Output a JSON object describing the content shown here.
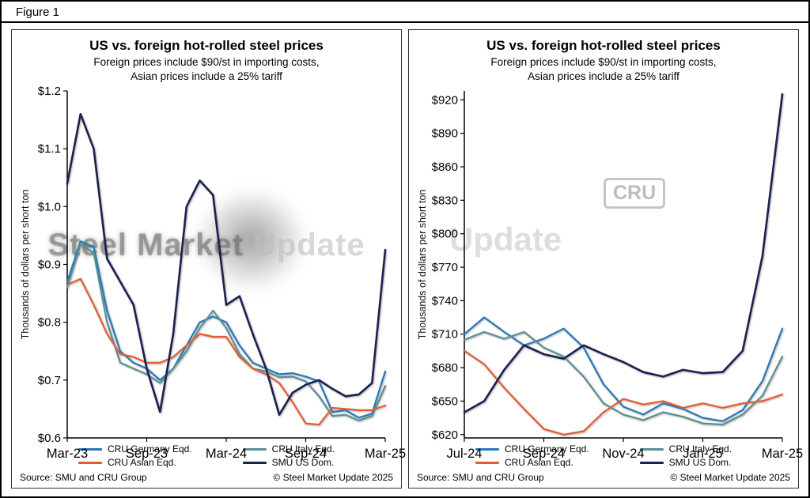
{
  "figure_label": "Figure 1",
  "watermark": {
    "left_dark": "Steel Market",
    "left_light": "Update",
    "badge": "CRU",
    "right_text": "Update"
  },
  "chart_data": [
    {
      "type": "line",
      "title": "US vs. foreign hot-rolled steel prices",
      "subtitle_line1": "Foreign prices include $90/st in importing costs,",
      "subtitle_line2": "Asian prices include a 25% tariff",
      "ylabel": "Thousands of dollars per short ton",
      "source": "Source: SMU and CRU Group",
      "copyright": "© Steel Market Update 2025",
      "grid": false,
      "legend_position": "bottom",
      "ylim": [
        0.6,
        1.2
      ],
      "y_ticks": [
        0.6,
        0.7,
        0.8,
        0.9,
        1.0,
        1.1,
        1.2
      ],
      "y_tick_labels": [
        "$0.6",
        "$0.7",
        "$0.8",
        "$0.9",
        "$1.0",
        "$1.1",
        "$1.2"
      ],
      "x_tick_labels": [
        "Mar-23",
        "Sep-23",
        "Mar-24",
        "Sep-24",
        "Mar-25"
      ],
      "x_tick_indices": [
        0,
        6,
        12,
        18,
        24
      ],
      "x_unit": "monthly from Mar-23 to Mar-25",
      "series": [
        {
          "name": "CRU Germany Eqd.",
          "color": "#2878b8",
          "width": 2.2,
          "values": [
            0.87,
            0.94,
            0.93,
            0.82,
            0.75,
            0.73,
            0.72,
            0.7,
            0.72,
            0.76,
            0.8,
            0.81,
            0.8,
            0.76,
            0.73,
            0.72,
            0.71,
            0.712,
            0.706,
            0.698,
            0.645,
            0.648,
            0.635,
            0.642,
            0.715
          ]
        },
        {
          "name": "CRU Italy Eqd.",
          "color": "#5b8f92",
          "width": 2.2,
          "values": [
            0.86,
            0.935,
            0.92,
            0.8,
            0.73,
            0.72,
            0.71,
            0.695,
            0.72,
            0.75,
            0.79,
            0.82,
            0.79,
            0.745,
            0.72,
            0.715,
            0.705,
            0.706,
            0.698,
            0.672,
            0.638,
            0.64,
            0.63,
            0.638,
            0.69
          ]
        },
        {
          "name": "CRU Asian Eqd.",
          "color": "#e65c30",
          "width": 2.2,
          "values": [
            0.865,
            0.875,
            0.83,
            0.78,
            0.745,
            0.74,
            0.73,
            0.73,
            0.74,
            0.76,
            0.78,
            0.775,
            0.775,
            0.74,
            0.72,
            0.71,
            0.695,
            0.662,
            0.625,
            0.623,
            0.652,
            0.65,
            0.648,
            0.648,
            0.656
          ]
        },
        {
          "name": "SMU US Dom.",
          "color": "#1b2150",
          "width": 2.6,
          "values": [
            1.04,
            1.16,
            1.1,
            0.91,
            0.87,
            0.83,
            0.72,
            0.645,
            0.78,
            1.0,
            1.045,
            1.02,
            0.83,
            0.845,
            0.78,
            0.72,
            0.64,
            0.678,
            0.692,
            0.7,
            0.685,
            0.672,
            0.675,
            0.695,
            0.925
          ]
        }
      ]
    },
    {
      "type": "line",
      "title": "US vs. foreign hot-rolled steel prices",
      "subtitle_line1": "Foreign prices include $90/st in importing costs,",
      "subtitle_line2": "Asian prices include a 25% tariff",
      "ylabel": "Thousands of dollars per short ton",
      "source": "Source: SMU and CRU Group",
      "copyright": "© Steel Market Update 2025",
      "grid": false,
      "legend_position": "bottom",
      "ylim": [
        617,
        928
      ],
      "y_ticks": [
        620,
        650,
        680,
        710,
        740,
        770,
        800,
        830,
        860,
        890,
        920
      ],
      "y_tick_labels": [
        "$620",
        "$650",
        "$680",
        "$710",
        "$740",
        "$770",
        "$800",
        "$830",
        "$860",
        "$890",
        "$920"
      ],
      "x_tick_labels": [
        "Jul-24",
        "Sep-24",
        "Nov-24",
        "Jan-25",
        "Mar-25"
      ],
      "x_tick_indices": [
        0,
        4,
        8,
        12,
        16
      ],
      "x_unit": "semi-monthly from Jul-24 to Mar-25",
      "series": [
        {
          "name": "CRU Germany Eqd.",
          "color": "#2878b8",
          "width": 2.2,
          "values": [
            710,
            725,
            712,
            700,
            706,
            715,
            698,
            665,
            645,
            638,
            648,
            643,
            635,
            632,
            642,
            668,
            715
          ]
        },
        {
          "name": "CRU Italy Eqd.",
          "color": "#5b8f92",
          "width": 2.2,
          "values": [
            705,
            712,
            706,
            712,
            698,
            690,
            672,
            648,
            638,
            633,
            640,
            636,
            630,
            629,
            638,
            655,
            690
          ]
        },
        {
          "name": "CRU Asian Eqd.",
          "color": "#e65c30",
          "width": 2.2,
          "values": [
            695,
            683,
            662,
            643,
            625,
            620,
            623,
            640,
            652,
            647,
            650,
            644,
            648,
            644,
            648,
            650,
            656
          ]
        },
        {
          "name": "SMU US Dom.",
          "color": "#1b2150",
          "width": 2.6,
          "values": [
            640,
            650,
            678,
            700,
            692,
            688,
            700,
            692,
            685,
            676,
            672,
            678,
            675,
            676,
            695,
            780,
            925
          ]
        }
      ]
    }
  ]
}
